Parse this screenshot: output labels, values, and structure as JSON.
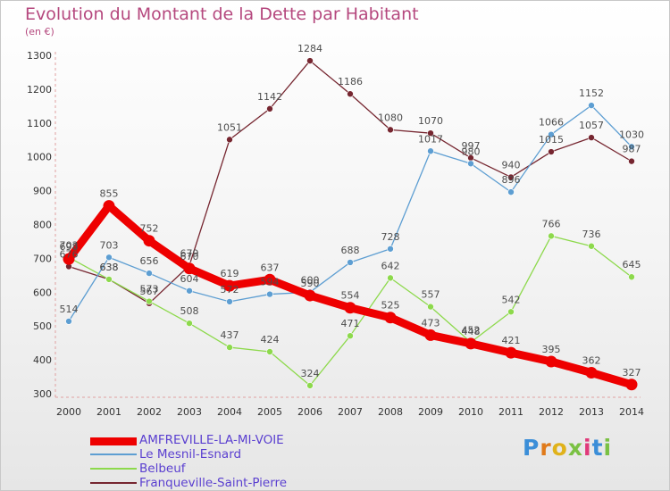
{
  "title": "Evolution du Montant de la Dette par Habitant",
  "unit": "(en €)",
  "logo": "Proxiti",
  "chart_data": {
    "type": "line",
    "x": [
      "2000",
      "2001",
      "2002",
      "2003",
      "2004",
      "2005",
      "2006",
      "2007",
      "2008",
      "2009",
      "2010",
      "2011",
      "2012",
      "2013",
      "2014"
    ],
    "ylim": [
      300,
      1300
    ],
    "yticks": [
      300,
      400,
      500,
      600,
      700,
      800,
      900,
      1000,
      1100,
      1200,
      1300
    ],
    "grid": false,
    "legend_position": "bottom-left",
    "series": [
      {
        "name": "AMFREVILLE-LA-MI-VOIE",
        "color": "#ee0000",
        "values": [
          698,
          855,
          752,
          670,
          619,
          637,
          590,
          554,
          525,
          473,
          448,
          421,
          395,
          362,
          327
        ]
      },
      {
        "name": "Le Mesnil-Esnard",
        "color": "#5d9ed2",
        "values": [
          514,
          703,
          656,
          604,
          572,
          594,
          600,
          688,
          728,
          1017,
          980,
          896,
          1066,
          1152,
          1030
        ]
      },
      {
        "name": "Belbeuf",
        "color": "#8dd94c",
        "values": [
          703,
          638,
          573,
          508,
          437,
          424,
          324,
          471,
          642,
          557,
          452,
          542,
          766,
          736,
          645
        ]
      },
      {
        "name": "Franqueville-Saint-Pierre",
        "color": "#762630",
        "values": [
          676,
          638,
          567,
          679,
          1051,
          1142,
          1284,
          1186,
          1080,
          1070,
          997,
          940,
          1015,
          1057,
          987
        ]
      }
    ]
  }
}
